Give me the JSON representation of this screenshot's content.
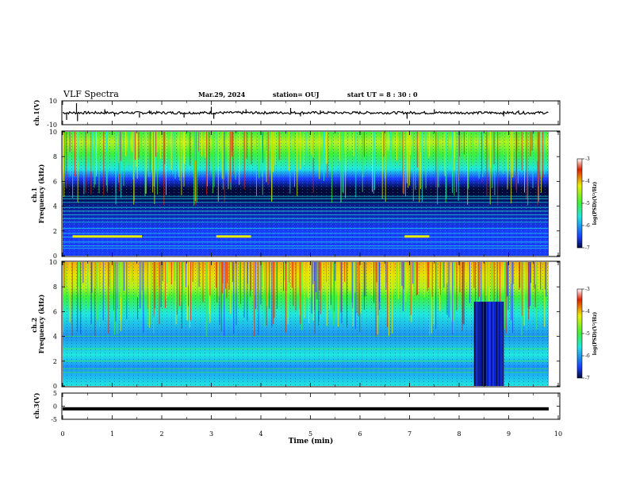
{
  "header": {
    "title": "VLF Spectra",
    "date": "Mar.29, 2024",
    "station": "station= OUJ",
    "start_ut": "start  UT =   8  : 30 : 0"
  },
  "chart_data": [
    {
      "type": "line",
      "name": "ch1-waveform",
      "ylabel": "ch.1(V)",
      "ylim": [
        -10,
        10
      ],
      "yticks": [
        "10",
        "-10"
      ],
      "baseline_v": 0,
      "spikes": [
        {
          "t": 0.08,
          "v": -6
        },
        {
          "t": 0.28,
          "v": 8
        },
        {
          "t": 0.3,
          "v": -7
        },
        {
          "t": 0.85,
          "v": 3
        },
        {
          "t": 1.05,
          "v": -3
        },
        {
          "t": 1.55,
          "v": -4
        },
        {
          "t": 1.75,
          "v": 2
        },
        {
          "t": 2.45,
          "v": -4
        },
        {
          "t": 3.0,
          "v": 5
        },
        {
          "t": 3.05,
          "v": -5
        },
        {
          "t": 3.7,
          "v": 3
        },
        {
          "t": 4.6,
          "v": 4
        },
        {
          "t": 4.8,
          "v": -3
        },
        {
          "t": 5.2,
          "v": 2
        },
        {
          "t": 6.95,
          "v": -5
        },
        {
          "t": 7.5,
          "v": 3
        },
        {
          "t": 8.9,
          "v": -3
        },
        {
          "t": 9.2,
          "v": 2
        }
      ],
      "xlim": [
        0,
        10
      ]
    },
    {
      "type": "heatmap",
      "name": "ch1-spectrogram",
      "ylabel": "ch.1\nFrequency (kHz)",
      "ylim": [
        0,
        10
      ],
      "yticks": [
        "0",
        "2",
        "4",
        "6",
        "8",
        "10"
      ],
      "xlim": [
        0,
        9.8
      ],
      "colorbar": {
        "label": "log(PSD)(V²/Hz)",
        "range": [
          -7,
          -3
        ],
        "ticks": [
          "-3",
          "-4",
          "-5",
          "-6",
          "-7"
        ]
      },
      "band_lines_khz": [
        4.8,
        4.6,
        4.3,
        3.9,
        3.6,
        3.3,
        3.0,
        2.7,
        2.2,
        1.8,
        1.5,
        1.1,
        0.8,
        0.6
      ],
      "strong_segments": [
        {
          "t0": 0.2,
          "t1": 1.6,
          "f": 1.55
        },
        {
          "t0": 3.1,
          "t1": 3.8,
          "f": 1.55
        },
        {
          "t0": 6.9,
          "t1": 7.4,
          "f": 1.55
        }
      ]
    },
    {
      "type": "heatmap",
      "name": "ch2-spectrogram",
      "ylabel": "ch.2\nFrequency (kHz)",
      "ylim": [
        0,
        10
      ],
      "yticks": [
        "0",
        "2",
        "4",
        "6",
        "8",
        "10"
      ],
      "xlim": [
        0,
        9.8
      ],
      "colorbar": {
        "label": "log(PSD)(V²/Hz)",
        "range": [
          -7,
          -3
        ],
        "ticks": [
          "-3",
          "-4",
          "-5",
          "-6",
          "-7"
        ]
      },
      "dark_block": {
        "t0": 8.3,
        "t1": 8.9,
        "f0": 0,
        "f1": 6.8
      },
      "band_lines_khz": [
        4.0,
        3.0,
        2.0,
        1.4,
        1.1
      ]
    },
    {
      "type": "line",
      "name": "ch3-waveform",
      "ylabel": "ch.3(V)",
      "ylim": [
        -5,
        5
      ],
      "yticks": [
        "5",
        "0",
        "-5"
      ],
      "level_v": -1,
      "xlim": [
        0,
        10
      ]
    }
  ],
  "axes": {
    "xlabel": "Time (min)",
    "xticks": [
      "0",
      "1",
      "2",
      "3",
      "4",
      "5",
      "6",
      "7",
      "8",
      "9",
      "10"
    ]
  },
  "colors": {
    "dark_blue": "#000a3c",
    "blue": "#1a3cff",
    "cyan": "#1ee8e0",
    "green": "#3cf03c",
    "yellow": "#e8f000",
    "red": "#e02000"
  }
}
